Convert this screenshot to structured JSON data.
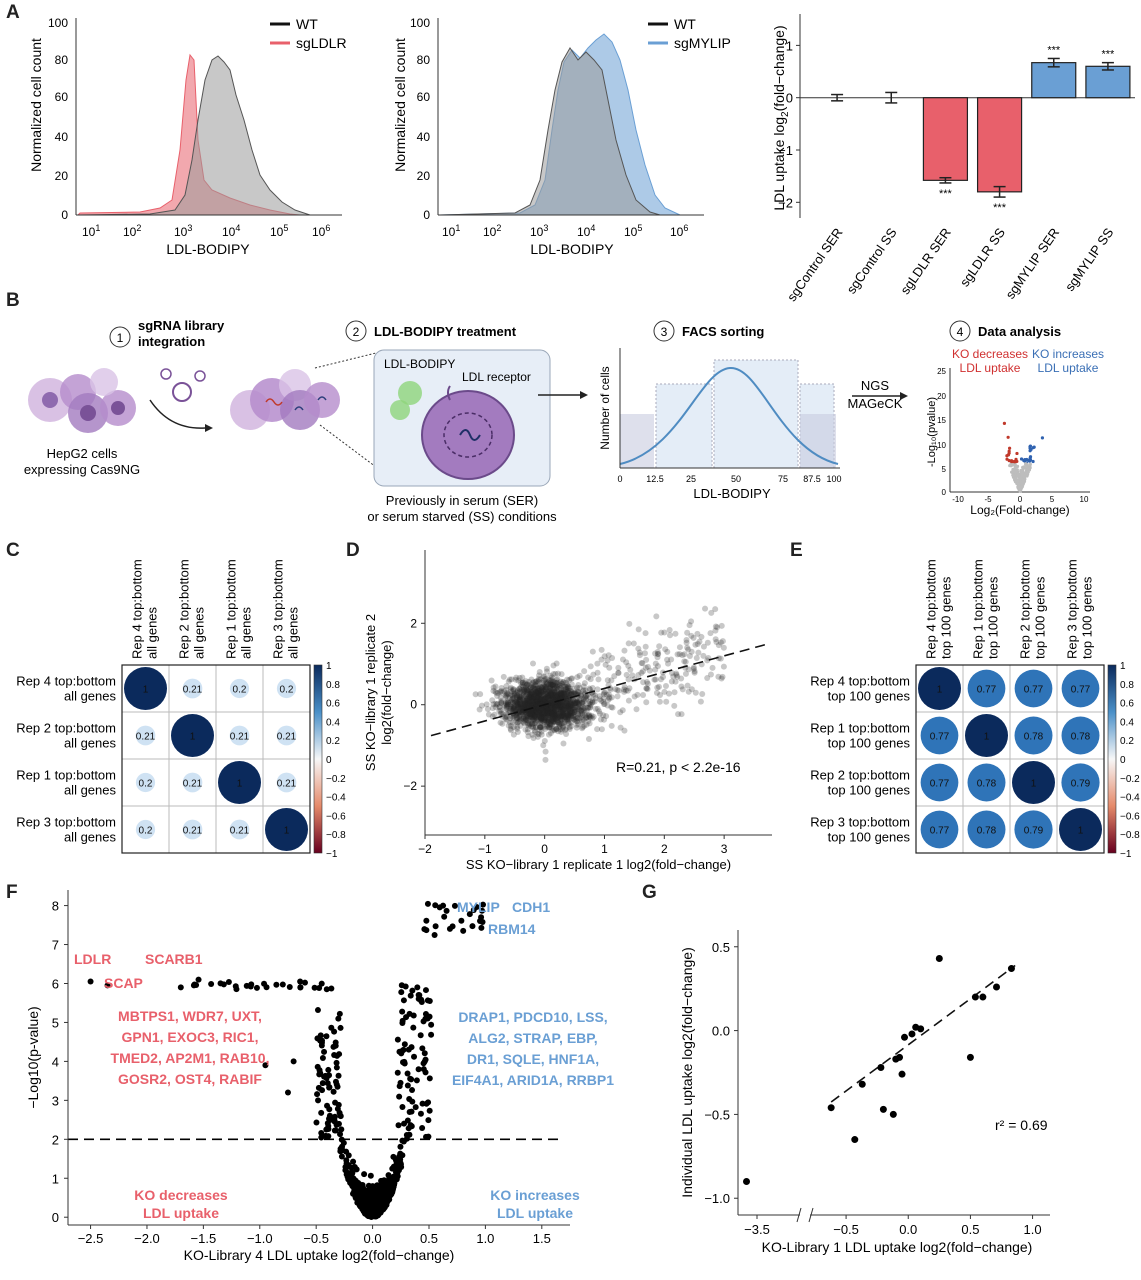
{
  "panels": {
    "A": {
      "letter": "A",
      "hist1": {
        "ylabel": "Normalized cell count",
        "xlabel": "LDL-BODIPY",
        "yticks": [
          "0",
          "20",
          "40",
          "60",
          "80",
          "100"
        ],
        "xticks": [
          "10",
          "10",
          "10",
          "10",
          "10",
          "10"
        ],
        "xexp": [
          "1",
          "2",
          "3",
          "4",
          "5",
          "6"
        ],
        "legend": [
          {
            "name": "WT",
            "color": "#111111"
          },
          {
            "name": "sgLDLR",
            "color": "#e8606b"
          }
        ]
      },
      "hist2": {
        "ylabel": "Normalized cell count",
        "xlabel": "LDL-BODIPY",
        "yticks": [
          "0",
          "20",
          "40",
          "60",
          "80",
          "100"
        ],
        "xticks": [
          "10",
          "10",
          "10",
          "10",
          "10",
          "10"
        ],
        "xexp": [
          "1",
          "2",
          "3",
          "4",
          "5",
          "6"
        ],
        "legend": [
          {
            "name": "WT",
            "color": "#111111"
          },
          {
            "name": "sgMYLIP",
            "color": "#6a9fd4"
          }
        ]
      },
      "bar": {
        "ylabel": "LDL uptake log",
        "ylabel_sub": "2",
        "ylabel_tail": "(fold−change)",
        "yticks": [
          "1",
          "0",
          "−1",
          "−2"
        ],
        "stars": "***"
      }
    },
    "B": {
      "letter": "B",
      "step1": {
        "num": "1",
        "title": "sgRNA library\nintegration",
        "cells_label": "HepG2 cells\nexpressing Cas9NG"
      },
      "step2": {
        "num": "2",
        "title": "LDL-BODIPY treatment",
        "bodipy": "LDL-BODIPY",
        "receptor": "LDL receptor",
        "caption": "Previously in serum (SER)\nor serum starved (SS) conditions"
      },
      "step3": {
        "num": "3",
        "title": "FACS sorting",
        "ylabel": "Number of cells",
        "xlabel": "LDL-BODIPY",
        "xticks": [
          "0",
          "12.5",
          "25",
          "50",
          "75",
          "87.5",
          "100"
        ]
      },
      "arrow_label": "NGS\nMAGeCK",
      "step4": {
        "num": "4",
        "title": "Data analysis",
        "left_label": "KO decreases\nLDL uptake",
        "right_label": "KO increases\nLDL uptake",
        "ylabel": "-Log₁₀(p",
        "ylabel_tail": "value)",
        "xlabel": "Log₂(Fold-change)",
        "yticks": [
          "0",
          "5",
          "10",
          "15",
          "20",
          "25"
        ],
        "xticks": [
          "-10",
          "-5",
          "0",
          "5",
          "10"
        ]
      }
    },
    "C": {
      "letter": "C",
      "scale": [
        "1",
        "0.8",
        "0.6",
        "0.4",
        "0.2",
        "0",
        "−0.2",
        "−0.4",
        "−0.6",
        "−0.8",
        "−1"
      ]
    },
    "D": {
      "letter": "D",
      "annotation": "R=0.21, p < 2.2e-16"
    },
    "E": {
      "letter": "E",
      "scale": [
        "1",
        "0.8",
        "0.6",
        "0.4",
        "0.2",
        "0",
        "−0.2",
        "−0.4",
        "−0.6",
        "−0.8",
        "−1"
      ]
    },
    "F": {
      "letter": "F",
      "left_genes": [
        "MBTPS1, WDR7, UXT,",
        "GPN1, EXOC3, RIC1,",
        "TMED2, AP2M1, RAB10,",
        "GOSR2, OST4, RABIF"
      ],
      "right_genes": [
        "DRAP1, PDCD10, LSS,",
        "ALG2, STRAP, EBP,",
        "DR1, SQLE, HNF1A,",
        "EIF4A1, ARID1A, RRBP1"
      ],
      "labels": {
        "ldlr": "LDLR",
        "scarb1": "SCARB1",
        "scap": "SCAP",
        "mylip": "MYLIP",
        "cdh1": "CDH1",
        "rbm14": "RBM14"
      },
      "left_caption": [
        "KO decreases",
        "LDL uptake"
      ],
      "right_caption": [
        "KO increases",
        "LDL uptake"
      ]
    },
    "G": {
      "letter": "G",
      "annotation": "r² = 0.69"
    }
  },
  "colors": {
    "red": "#e8606b",
    "blue": "#6a9fd4",
    "navy": "#0b2a5c",
    "light": "#cfe2f3"
  },
  "chart_data": [
    {
      "type": "bar",
      "title": "",
      "xlabel": "",
      "ylabel": "LDL uptake log2(fold−change)",
      "categories": [
        "sgControl SER",
        "sgControl SS",
        "sgLDLR SER",
        "sgLDLR SS",
        "sgMYLIP SER",
        "sgMYLIP SS"
      ],
      "values": [
        0.0,
        0.0,
        -1.58,
        -1.8,
        0.67,
        0.6
      ],
      "errors": [
        0.06,
        0.1,
        0.05,
        0.1,
        0.08,
        0.07
      ],
      "significant": [
        false,
        false,
        true,
        true,
        true,
        true
      ],
      "colors": [
        "#e8606b",
        "#e8606b",
        "#e8606b",
        "#e8606b",
        "#6a9fd4",
        "#6a9fd4"
      ],
      "ylim": [
        -2.3,
        1.6
      ]
    },
    {
      "type": "heatmap",
      "title": "",
      "rows": [
        "Rep 4 top:bottom\nall genes",
        "Rep 2 top:bottom\nall genes",
        "Rep 1 top:bottom\nall genes",
        "Rep 3 top:bottom\nall genes"
      ],
      "columns": [
        "Rep 4 top:bottom\nall genes",
        "Rep 2 top:bottom\nall genes",
        "Rep 1 top:bottom\nall genes",
        "Rep 3 top:bottom\nall genes"
      ],
      "values": [
        [
          1,
          0.21,
          0.2,
          0.2
        ],
        [
          0.21,
          1,
          0.21,
          0.21
        ],
        [
          0.2,
          0.21,
          1,
          0.21
        ],
        [
          0.2,
          0.21,
          0.21,
          1
        ]
      ],
      "scale": [
        -1,
        1
      ]
    },
    {
      "type": "scatter",
      "title": "",
      "xlabel": "SS KO−library 1 replicate 1 log2(fold−change)",
      "ylabel": "SS KO−library 1 replicate 2 log2(fold−change)",
      "xlim": [
        -2,
        3.8
      ],
      "ylim": [
        -3.2,
        3.8
      ],
      "xticks": [
        -2,
        -1,
        0,
        1,
        2,
        3
      ],
      "yticks": [
        -2,
        0,
        2
      ],
      "trend": {
        "intercept": 0,
        "slope": 0.4
      },
      "r": 0.21,
      "p": "< 2.2e-16"
    },
    {
      "type": "heatmap",
      "title": "",
      "rows": [
        "Rep 4 top:bottom\ntop 100 genes",
        "Rep 1 top:bottom\ntop 100 genes",
        "Rep 2 top:bottom\ntop 100 genes",
        "Rep 3 top:bottom\ntop 100 genes"
      ],
      "columns": [
        "Rep 4 top:bottom\ntop 100 genes",
        "Rep 1 top:bottom\ntop 100 genes",
        "Rep 2 top:bottom\ntop 100 genes",
        "Rep 3 top:bottom\ntop 100 genes"
      ],
      "values": [
        [
          1,
          0.77,
          0.77,
          0.77
        ],
        [
          0.77,
          1,
          0.78,
          0.78
        ],
        [
          0.77,
          0.78,
          1,
          0.79
        ],
        [
          0.77,
          0.78,
          0.79,
          1
        ]
      ],
      "scale": [
        -1,
        1
      ]
    },
    {
      "type": "scatter",
      "title": "",
      "xlabel": "KO-Library 4 LDL uptake log2(fold−change)",
      "ylabel": "−Log10(p-value)",
      "xlim": [
        -2.7,
        1.75
      ],
      "ylim": [
        -0.2,
        8.4
      ],
      "xticks": [
        -2.5,
        -2.0,
        -1.5,
        -1.0,
        -0.5,
        0.0,
        0.5,
        1.0,
        1.5
      ],
      "yticks": [
        0,
        1,
        2,
        3,
        4,
        5,
        6,
        7,
        8
      ],
      "threshold": 2
    },
    {
      "type": "scatter",
      "title": "",
      "xlabel": "KO-Library 1 LDL uptake log2(fold−change)",
      "ylabel": "Individual LDL uptake log2(fold−change)",
      "xticks": [
        -3.5,
        -0.5,
        0.0,
        0.5,
        1.0
      ],
      "yticks": [
        -1.0,
        -0.5,
        0.0,
        0.5
      ],
      "ylim": [
        -1.1,
        0.6
      ],
      "points": [
        [
          -3.65,
          -0.9
        ],
        [
          -0.62,
          -0.46
        ],
        [
          -0.43,
          -0.65
        ],
        [
          -0.37,
          -0.32
        ],
        [
          -0.22,
          -0.22
        ],
        [
          -0.2,
          -0.47
        ],
        [
          -0.12,
          -0.5
        ],
        [
          -0.1,
          -0.17
        ],
        [
          -0.07,
          -0.16
        ],
        [
          -0.05,
          -0.26
        ],
        [
          -0.03,
          -0.04
        ],
        [
          0.03,
          -0.02
        ],
        [
          0.06,
          0.02
        ],
        [
          0.1,
          0.01
        ],
        [
          0.25,
          0.43
        ],
        [
          0.5,
          -0.16
        ],
        [
          0.54,
          0.2
        ],
        [
          0.6,
          0.2
        ],
        [
          0.71,
          0.26
        ],
        [
          0.83,
          0.37
        ]
      ],
      "trend": {
        "intercept": -0.085,
        "slope": 0.55
      },
      "r2": 0.69
    }
  ]
}
